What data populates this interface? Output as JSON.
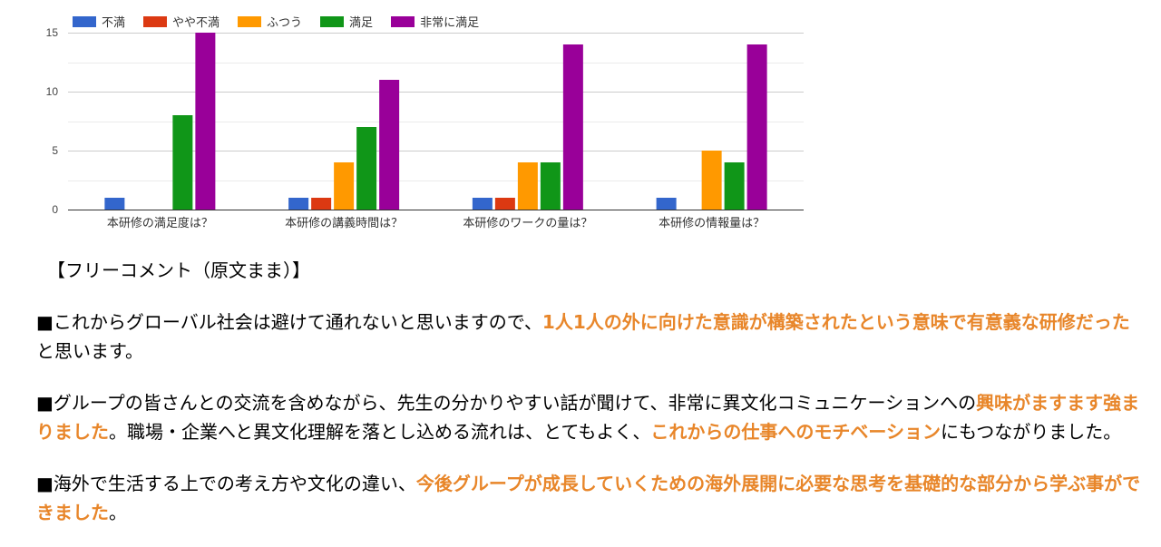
{
  "chart_data": {
    "type": "bar",
    "categories": [
      "本研修の満足度は？",
      "本研修の講義時間は？",
      "本研修のワークの量は？",
      "本研修の情報量は？"
    ],
    "series": [
      {
        "name": "不満",
        "color": "#3366cc",
        "values": [
          1,
          1,
          1,
          1
        ]
      },
      {
        "name": "やや不満",
        "color": "#dc3912",
        "values": [
          0,
          1,
          1,
          0
        ]
      },
      {
        "name": "ふつう",
        "color": "#ff9900",
        "values": [
          0,
          4,
          4,
          5
        ]
      },
      {
        "name": "満足",
        "color": "#109618",
        "values": [
          8,
          7,
          4,
          4
        ]
      },
      {
        "name": "非常に満足",
        "color": "#990099",
        "values": [
          15,
          11,
          14,
          14
        ]
      }
    ],
    "ylim": [
      0,
      15
    ],
    "yticks": [
      "0",
      "5",
      "10",
      "15"
    ],
    "grid": true,
    "legend_position": "top"
  },
  "comments": {
    "heading": "【フリーコメント（原文まま）】",
    "items": [
      [
        {
          "text": "■これからグローバル社会は避けて通れないと思いますので、",
          "hl": false
        },
        {
          "text": "1人1人の外に向けた意識が構築されたという意味で有意義な研修だった",
          "hl": true
        },
        {
          "text": "と思います。",
          "hl": false
        }
      ],
      [
        {
          "text": "■グループの皆さんとの交流を含めながら、先生の分かりやすい話が聞けて、非常に異文化コミュニケーションへの",
          "hl": false
        },
        {
          "text": "興味がますます強まりました",
          "hl": true
        },
        {
          "text": "。職場・企業へと異文化理解を落とし込める流れは、とてもよく、",
          "hl": false
        },
        {
          "text": "これからの仕事へのモチベーション",
          "hl": true
        },
        {
          "text": "にもつながりました。",
          "hl": false
        }
      ],
      [
        {
          "text": "■海外で生活する上での考え方や文化の違い、",
          "hl": false
        },
        {
          "text": "今後グループが成長していくための海外展開に必要な思考を基礎的な部分から学ぶ事ができました",
          "hl": true
        },
        {
          "text": "。",
          "hl": false
        }
      ]
    ]
  }
}
